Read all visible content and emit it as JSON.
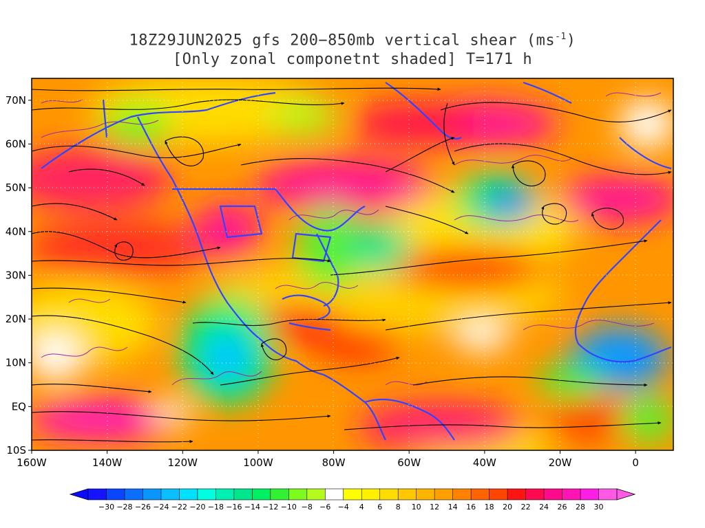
{
  "title": {
    "line1_main": "18Z29JUN2025 gfs 200−850mb vertical shear (ms",
    "line1_sup": "-1",
    "line1_end": ")",
    "line2": "[Only zonal componetnt shaded] T=171 h"
  },
  "axes": {
    "lat_labels": [
      "70N",
      "60N",
      "50N",
      "40N",
      "30N",
      "20N",
      "10N",
      "EQ",
      "10S"
    ],
    "lat_values": [
      70,
      60,
      50,
      40,
      30,
      20,
      10,
      0,
      -10
    ],
    "lon_labels": [
      "160W",
      "140W",
      "120W",
      "100W",
      "80W",
      "60W",
      "40W",
      "20W",
      "0"
    ],
    "lon_values": [
      -160,
      -140,
      -120,
      -100,
      -80,
      -60,
      -40,
      -20,
      0
    ],
    "lon_range": [
      -160,
      10
    ],
    "lat_range": [
      -10,
      75
    ]
  },
  "colorbar": {
    "labels": [
      "-30",
      "-28",
      "-26",
      "-24",
      "-22",
      "-20",
      "-18",
      "-16",
      "-14",
      "-12",
      "-10",
      "-8",
      "-6",
      "-4",
      "4",
      "6",
      "8",
      "10",
      "12",
      "14",
      "16",
      "18",
      "20",
      "22",
      "24",
      "26",
      "28",
      "30"
    ],
    "colors": [
      "#1414ff",
      "#0a46ff",
      "#0a6eff",
      "#0a96ff",
      "#0abeff",
      "#00e1ff",
      "#00ffe1",
      "#00f0b4",
      "#00e68c",
      "#00f064",
      "#32f032",
      "#7dfa1e",
      "#b4fa1e",
      "#ffffff",
      "#ffff00",
      "#fff000",
      "#ffdc00",
      "#ffc800",
      "#ffb400",
      "#ffa000",
      "#ff8200",
      "#ff6400",
      "#ff4600",
      "#ff1414",
      "#ff0a50",
      "#ff0a8c",
      "#ff14b4",
      "#ff1ee6",
      "#ff5ae6"
    ],
    "left_arrow_color": "#0a0aff",
    "right_arrow_color": "#ff5ae6"
  },
  "palette": {
    "contour": "#9a2aa0",
    "boundary": "#3244ff",
    "streamline": "#000000"
  }
}
